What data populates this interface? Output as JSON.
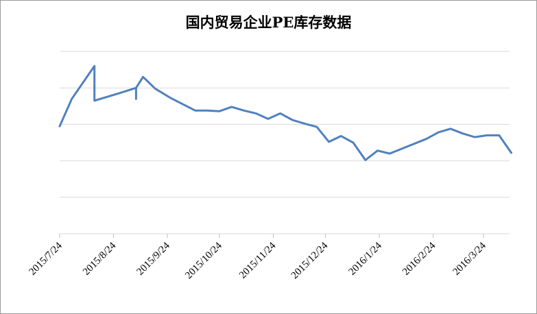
{
  "chart_data": {
    "type": "line",
    "title": "国内贸易企业PE库存数据",
    "xlabel": "",
    "ylabel": "",
    "x_tick_labels": [
      "2015/7/24",
      "2015/8/24",
      "2015/9/24",
      "2015/10/24",
      "2015/11/24",
      "2015/12/24",
      "2016/1/24",
      "2016/2/24",
      "2016/3/24"
    ],
    "y_tick_labels": [],
    "ylim": [
      0,
      5
    ],
    "y_gridlines": [
      1,
      2,
      3,
      4,
      5
    ],
    "grid": true,
    "legend": "none",
    "series": [
      {
        "color": "#4f81bd",
        "points": [
          {
            "x": "2015-07-24",
            "y": 2.95
          },
          {
            "x": "2015-07-31",
            "y": 3.7
          },
          {
            "x": "2015-08-13",
            "y": 4.6
          },
          {
            "x": "2015-08-13",
            "y": 3.65
          },
          {
            "x": "2015-08-27",
            "y": 3.85
          },
          {
            "x": "2015-09-06",
            "y": 4.0
          },
          {
            "x": "2015-09-06",
            "y": 3.7
          },
          {
            "x": "2015-09-06",
            "y": 4.0
          },
          {
            "x": "2015-09-10",
            "y": 4.3
          },
          {
            "x": "2015-09-17",
            "y": 3.98
          },
          {
            "x": "2015-09-26",
            "y": 3.72
          },
          {
            "x": "2015-10-10",
            "y": 3.38
          },
          {
            "x": "2015-10-17",
            "y": 3.38
          },
          {
            "x": "2015-10-24",
            "y": 3.36
          },
          {
            "x": "2015-10-31",
            "y": 3.48
          },
          {
            "x": "2015-11-07",
            "y": 3.38
          },
          {
            "x": "2015-11-14",
            "y": 3.3
          },
          {
            "x": "2015-11-21",
            "y": 3.15
          },
          {
            "x": "2015-11-28",
            "y": 3.3
          },
          {
            "x": "2015-12-05",
            "y": 3.12
          },
          {
            "x": "2015-12-12",
            "y": 3.02
          },
          {
            "x": "2015-12-19",
            "y": 2.93
          },
          {
            "x": "2015-12-26",
            "y": 2.52
          },
          {
            "x": "2016-01-02",
            "y": 2.68
          },
          {
            "x": "2016-01-09",
            "y": 2.5
          },
          {
            "x": "2016-01-16",
            "y": 2.02
          },
          {
            "x": "2016-01-23",
            "y": 2.28
          },
          {
            "x": "2016-01-30",
            "y": 2.2
          },
          {
            "x": "2016-02-20",
            "y": 2.6
          },
          {
            "x": "2016-02-27",
            "y": 2.78
          },
          {
            "x": "2016-03-05",
            "y": 2.88
          },
          {
            "x": "2016-03-12",
            "y": 2.75
          },
          {
            "x": "2016-03-19",
            "y": 2.65
          },
          {
            "x": "2016-03-26",
            "y": 2.7
          },
          {
            "x": "2016-04-02",
            "y": 2.7
          },
          {
            "x": "2016-04-09",
            "y": 2.22
          }
        ]
      }
    ]
  }
}
